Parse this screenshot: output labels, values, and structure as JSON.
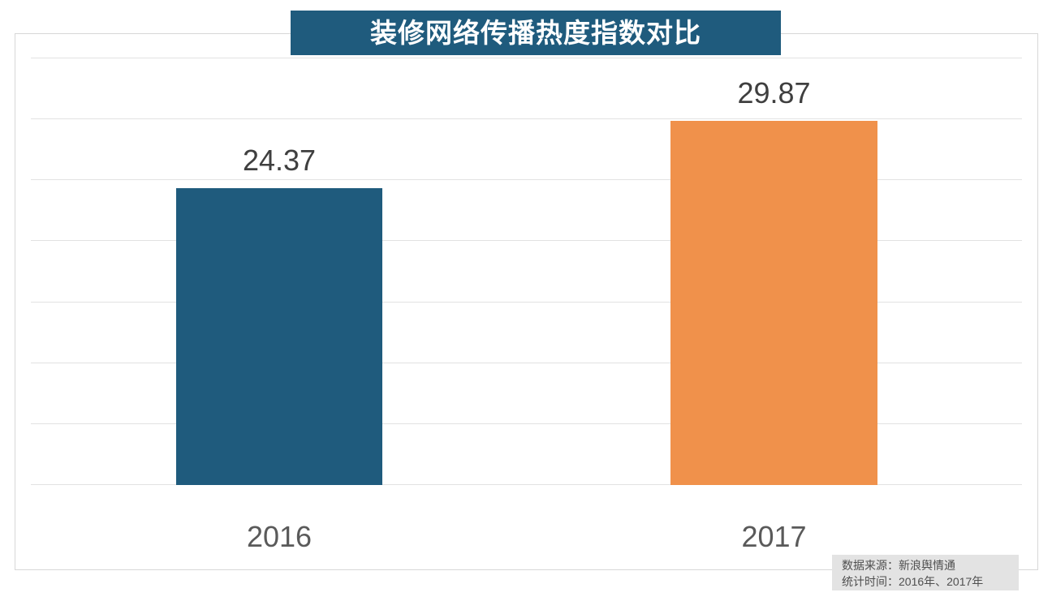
{
  "chart_data": {
    "type": "bar",
    "title": "装修网络传播热度指数对比",
    "categories": [
      "2016",
      "2017"
    ],
    "values": [
      24.37,
      29.87
    ],
    "value_labels": [
      "24.37",
      "29.87"
    ],
    "bar_colors": [
      "#1f5b7d",
      "#f0914b"
    ],
    "xlabel": "",
    "ylabel": "",
    "ylim": [
      0,
      35
    ],
    "gridline_step": 5,
    "grid": true,
    "legend_position": "none"
  },
  "title_banner": {
    "background": "#1f5b7d",
    "text_color": "#ffffff"
  },
  "source_note": {
    "lines": [
      "数据来源：新浪舆情通",
      "统计时间：2016年、2017年"
    ],
    "background": "#e3e3e3",
    "text_color": "#4f4f4f"
  },
  "colors": {
    "gridline": "#e2e2e2",
    "frame_border": "#d7d7d7",
    "value_label": "#3f3f3f",
    "category_label": "#5a5a5a",
    "page_background": "#ffffff"
  }
}
